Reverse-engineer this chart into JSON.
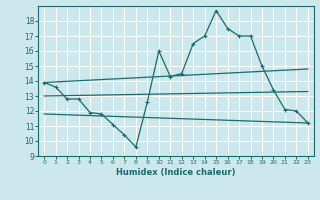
{
  "title": "",
  "xlabel": "Humidex (Indice chaleur)",
  "bg_color": "#cce8ec",
  "grid_color": "#ffffff",
  "line_color": "#1a6b6b",
  "xlim": [
    -0.5,
    23.5
  ],
  "ylim": [
    9,
    19
  ],
  "yticks": [
    9,
    10,
    11,
    12,
    13,
    14,
    15,
    16,
    17,
    18
  ],
  "xticks": [
    0,
    1,
    2,
    3,
    4,
    5,
    6,
    7,
    8,
    9,
    10,
    11,
    12,
    13,
    14,
    15,
    16,
    17,
    18,
    19,
    20,
    21,
    22,
    23
  ],
  "series1_x": [
    0,
    1,
    2,
    3,
    4,
    5,
    6,
    7,
    8,
    9,
    10,
    11,
    12,
    13,
    14,
    15,
    16,
    17,
    18,
    19,
    20,
    21,
    22,
    23
  ],
  "series1_y": [
    13.9,
    13.6,
    12.8,
    12.8,
    11.9,
    11.8,
    11.1,
    10.4,
    9.6,
    12.6,
    16.0,
    14.3,
    14.5,
    16.5,
    17.0,
    18.7,
    17.5,
    17.0,
    17.0,
    15.0,
    13.4,
    12.1,
    12.0,
    11.2
  ],
  "series2_x": [
    0,
    23
  ],
  "series2_y": [
    13.9,
    14.8
  ],
  "series3_x": [
    0,
    23
  ],
  "series3_y": [
    13.0,
    13.3
  ],
  "series4_x": [
    0,
    23
  ],
  "series4_y": [
    11.8,
    11.2
  ]
}
